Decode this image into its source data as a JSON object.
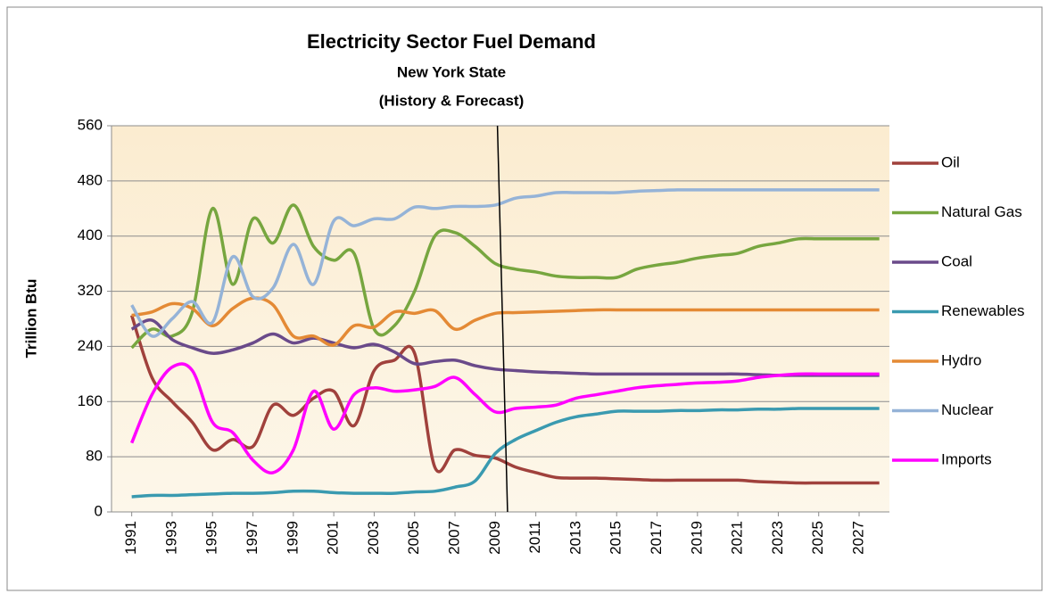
{
  "chart_data": {
    "type": "line",
    "title": "Electricity Sector Fuel Demand",
    "subtitle": [
      "New York State",
      "(History & Forecast)"
    ],
    "y_label": "Trillion Btu",
    "x": [
      1991,
      1992,
      1993,
      1994,
      1995,
      1996,
      1997,
      1998,
      1999,
      2000,
      2001,
      2002,
      2003,
      2004,
      2005,
      2006,
      2007,
      2008,
      2009,
      2010,
      2011,
      2012,
      2013,
      2014,
      2015,
      2016,
      2017,
      2018,
      2019,
      2020,
      2021,
      2022,
      2023,
      2024,
      2025,
      2026,
      2027,
      2028
    ],
    "xlim": [
      1990,
      2028.5
    ],
    "xticks": [
      1991,
      1993,
      1995,
      1997,
      1999,
      2001,
      2003,
      2005,
      2007,
      2009,
      2011,
      2013,
      2015,
      2017,
      2019,
      2021,
      2023,
      2025,
      2027
    ],
    "ylim": [
      0,
      560
    ],
    "yticks": [
      0,
      80,
      160,
      240,
      320,
      400,
      480,
      560
    ],
    "grid": true,
    "legend": "right",
    "divider_x": [
      2009.1,
      2009.6
    ],
    "series": [
      {
        "name": "Oil",
        "color": "#a0413c",
        "values": [
          285,
          195,
          160,
          130,
          90,
          105,
          95,
          155,
          140,
          165,
          175,
          125,
          205,
          220,
          230,
          65,
          90,
          82,
          78,
          65,
          57,
          50,
          49,
          49,
          48,
          47,
          46,
          46,
          46,
          46,
          46,
          44,
          43,
          42,
          42,
          42,
          42,
          42
        ]
      },
      {
        "name": "Natural Gas",
        "color": "#77a63f",
        "values": [
          238,
          265,
          255,
          290,
          440,
          330,
          425,
          390,
          445,
          385,
          365,
          375,
          265,
          270,
          320,
          400,
          405,
          385,
          360,
          352,
          348,
          342,
          340,
          340,
          340,
          352,
          358,
          362,
          368,
          372,
          375,
          385,
          390,
          396,
          396,
          396,
          396,
          396
        ]
      },
      {
        "name": "Coal",
        "color": "#6a4a8a",
        "values": [
          265,
          278,
          250,
          238,
          230,
          235,
          245,
          258,
          245,
          252,
          245,
          238,
          243,
          232,
          215,
          218,
          220,
          212,
          207,
          205,
          203,
          202,
          201,
          200,
          200,
          200,
          200,
          200,
          200,
          200,
          200,
          199,
          198,
          198,
          198,
          198,
          198,
          198
        ]
      },
      {
        "name": "Renewables",
        "color": "#3a9ab0",
        "values": [
          22,
          24,
          24,
          25,
          26,
          27,
          27,
          28,
          30,
          30,
          28,
          27,
          27,
          27,
          29,
          30,
          36,
          45,
          85,
          105,
          118,
          130,
          138,
          142,
          146,
          146,
          146,
          147,
          147,
          148,
          148,
          149,
          149,
          150,
          150,
          150,
          150,
          150
        ]
      },
      {
        "name": "Hydro",
        "color": "#e48a35",
        "values": [
          285,
          290,
          302,
          295,
          270,
          295,
          310,
          300,
          255,
          255,
          242,
          270,
          268,
          290,
          288,
          292,
          265,
          278,
          288,
          289,
          290,
          291,
          292,
          293,
          293,
          293,
          293,
          293,
          293,
          293,
          293,
          293,
          293,
          293,
          293,
          293,
          293,
          293
        ]
      },
      {
        "name": "Nuclear",
        "color": "#95b3d7",
        "values": [
          300,
          255,
          280,
          305,
          275,
          370,
          312,
          325,
          388,
          330,
          422,
          415,
          425,
          425,
          442,
          440,
          443,
          443,
          445,
          455,
          458,
          463,
          463,
          463,
          463,
          465,
          466,
          467,
          467,
          467,
          467,
          467,
          467,
          467,
          467,
          467,
          467,
          467
        ]
      },
      {
        "name": "Imports",
        "color": "#ff00ff",
        "values": [
          100,
          170,
          210,
          205,
          130,
          115,
          75,
          57,
          90,
          175,
          120,
          170,
          180,
          175,
          177,
          182,
          195,
          170,
          145,
          150,
          152,
          155,
          165,
          170,
          175,
          180,
          183,
          185,
          187,
          188,
          190,
          195,
          198,
          200,
          200,
          200,
          200,
          200
        ]
      }
    ]
  }
}
